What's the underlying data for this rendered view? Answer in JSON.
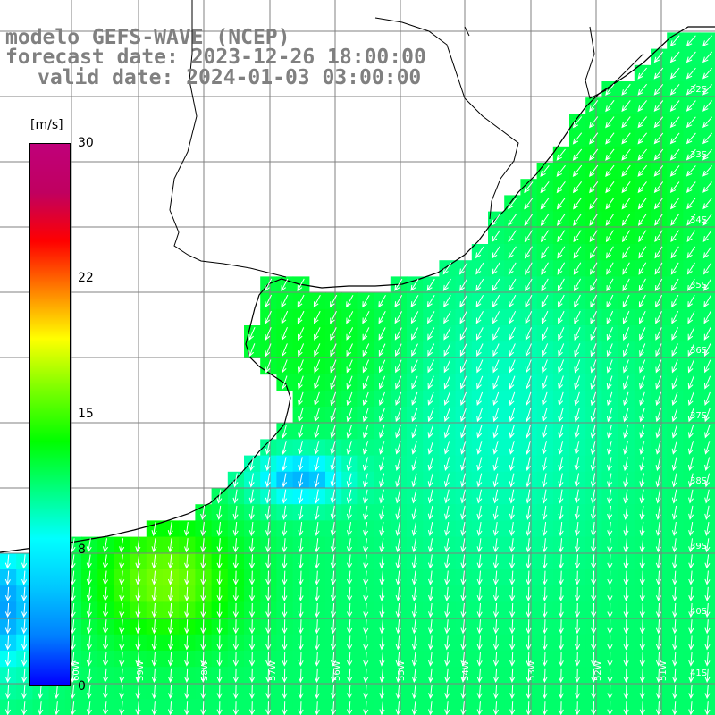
{
  "title": {
    "line1": "modelo GEFS-WAVE (NCEP)",
    "line2": "forecast date: 2023-12-26 18:00:00",
    "line3": "valid date: 2024-01-03 03:00:00"
  },
  "colorbar": {
    "units": "[m/s]",
    "ticks": [
      "30",
      "22",
      "15",
      "8",
      "0"
    ],
    "tick_values": [
      30,
      22,
      15,
      8,
      0
    ],
    "colors": [
      "#0000ff",
      "#0080ff",
      "#00c8ff",
      "#00ffff",
      "#00ff80",
      "#00ff00",
      "#80ff00",
      "#ffff00",
      "#ff8000",
      "#ff0000",
      "#c00060",
      "#c0007a"
    ]
  },
  "map": {
    "variable": "wind speed and direction",
    "units": "m/s",
    "lon_labels": [
      "60W",
      "59W",
      "58W",
      "57W",
      "56W",
      "55W",
      "54W",
      "53W",
      "52W",
      "51W"
    ],
    "lat_labels": [
      "32S",
      "33S",
      "34S",
      "35S",
      "36S",
      "37S",
      "38S",
      "39S",
      "40S",
      "41S"
    ],
    "land_color": "#ffffff",
    "coast_color": "#000000",
    "grid_color": "#808080",
    "arrow_color": "#ffffff"
  }
}
